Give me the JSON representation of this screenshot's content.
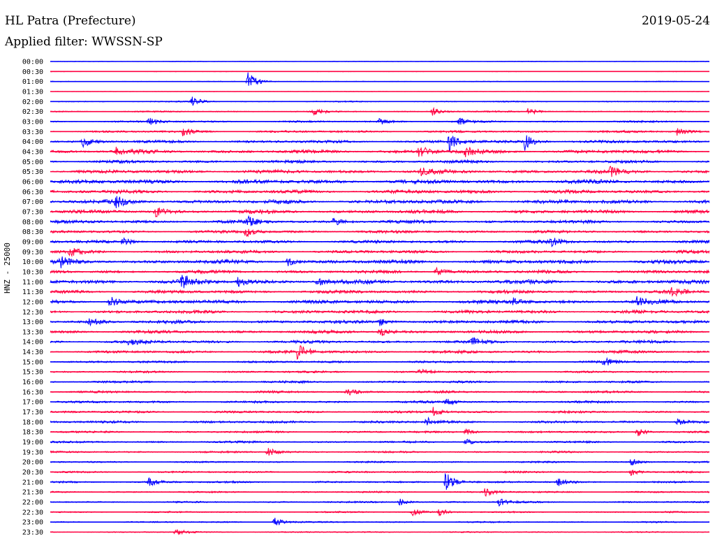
{
  "header": {
    "station": "HL Patra (Prefecture)",
    "date": "2019-05-24",
    "filter": "Applied filter: WWSSN-SP"
  },
  "chart_data": {
    "type": "line",
    "title": "HL Patra (Prefecture)",
    "ylabel": "HNZ - 25000",
    "colors": {
      "even": "#0000ff",
      "odd": "#ff0040"
    },
    "rows": [
      {
        "label": "00:00",
        "level": 0.15,
        "events": []
      },
      {
        "label": "00:30",
        "level": 0.15,
        "events": []
      },
      {
        "label": "01:00",
        "level": 0.2,
        "events": [
          [
            0.3,
            2.4
          ]
        ]
      },
      {
        "label": "01:30",
        "level": 0.12,
        "events": []
      },
      {
        "label": "02:00",
        "level": 0.3,
        "events": [
          [
            0.215,
            1.1
          ]
        ]
      },
      {
        "label": "02:30",
        "level": 0.35,
        "events": [
          [
            0.4,
            0.8
          ],
          [
            0.58,
            0.9
          ],
          [
            0.725,
            1.0
          ]
        ]
      },
      {
        "label": "03:00",
        "level": 0.45,
        "events": [
          [
            0.15,
            0.9
          ],
          [
            0.5,
            0.7
          ],
          [
            0.62,
            0.7
          ]
        ]
      },
      {
        "label": "03:30",
        "level": 0.55,
        "events": [
          [
            0.2,
            1.0
          ],
          [
            0.95,
            1.0
          ]
        ]
      },
      {
        "label": "04:00",
        "level": 0.7,
        "events": [
          [
            0.05,
            1.2
          ],
          [
            0.605,
            2.4
          ],
          [
            0.72,
            2.2
          ]
        ]
      },
      {
        "label": "04:30",
        "level": 0.9,
        "events": [
          [
            0.1,
            1.0
          ],
          [
            0.56,
            1.4
          ],
          [
            0.63,
            1.2
          ]
        ]
      },
      {
        "label": "05:00",
        "level": 0.7,
        "events": []
      },
      {
        "label": "05:30",
        "level": 0.9,
        "events": [
          [
            0.56,
            1.0
          ],
          [
            0.85,
            1.0
          ]
        ]
      },
      {
        "label": "06:00",
        "level": 1.0,
        "events": []
      },
      {
        "label": "06:30",
        "level": 0.9,
        "events": []
      },
      {
        "label": "07:00",
        "level": 1.0,
        "events": [
          [
            0.1,
            1.1
          ]
        ]
      },
      {
        "label": "07:30",
        "level": 0.9,
        "events": [
          [
            0.16,
            1.2
          ]
        ]
      },
      {
        "label": "08:00",
        "level": 0.8,
        "events": [
          [
            0.3,
            1.0
          ],
          [
            0.43,
            0.9
          ]
        ]
      },
      {
        "label": "08:30",
        "level": 0.7,
        "events": [
          [
            0.295,
            1.2
          ]
        ]
      },
      {
        "label": "09:00",
        "level": 0.75,
        "events": [
          [
            0.11,
            1.1
          ],
          [
            0.76,
            1.0
          ]
        ]
      },
      {
        "label": "09:30",
        "level": 0.75,
        "events": [
          [
            0.03,
            1.1
          ]
        ]
      },
      {
        "label": "10:00",
        "level": 0.95,
        "events": [
          [
            0.015,
            1.3
          ],
          [
            0.36,
            1.0
          ]
        ]
      },
      {
        "label": "10:30",
        "level": 0.8,
        "events": [
          [
            0.585,
            1.0
          ]
        ]
      },
      {
        "label": "11:00",
        "level": 1.0,
        "events": [
          [
            0.2,
            1.9
          ],
          [
            0.285,
            1.1
          ],
          [
            0.405,
            1.1
          ]
        ]
      },
      {
        "label": "11:30",
        "level": 0.8,
        "events": [
          [
            0.94,
            1.1
          ]
        ]
      },
      {
        "label": "12:00",
        "level": 0.9,
        "events": [
          [
            0.09,
            1.3
          ],
          [
            0.7,
            1.0
          ],
          [
            0.89,
            1.2
          ]
        ]
      },
      {
        "label": "12:30",
        "level": 0.8,
        "events": []
      },
      {
        "label": "13:00",
        "level": 0.8,
        "events": [
          [
            0.06,
            1.0
          ],
          [
            0.5,
            1.0
          ]
        ]
      },
      {
        "label": "13:30",
        "level": 0.75,
        "events": [
          [
            0.5,
            1.3
          ]
        ]
      },
      {
        "label": "14:00",
        "level": 0.7,
        "events": [
          [
            0.12,
            0.9
          ],
          [
            0.64,
            0.9
          ]
        ]
      },
      {
        "label": "14:30",
        "level": 0.7,
        "events": [
          [
            0.375,
            2.2
          ]
        ]
      },
      {
        "label": "15:00",
        "level": 0.55,
        "events": [
          [
            0.84,
            1.0
          ]
        ]
      },
      {
        "label": "15:30",
        "level": 0.5,
        "events": [
          [
            0.56,
            0.9
          ]
        ]
      },
      {
        "label": "16:00",
        "level": 0.55,
        "events": []
      },
      {
        "label": "16:30",
        "level": 0.55,
        "events": [
          [
            0.45,
            0.9
          ]
        ]
      },
      {
        "label": "17:00",
        "level": 0.55,
        "events": [
          [
            0.6,
            0.9
          ]
        ]
      },
      {
        "label": "17:30",
        "level": 0.55,
        "events": [
          [
            0.58,
            1.2
          ]
        ]
      },
      {
        "label": "18:00",
        "level": 0.6,
        "events": [
          [
            0.57,
            1.1
          ],
          [
            0.95,
            1.0
          ]
        ]
      },
      {
        "label": "18:30",
        "level": 0.5,
        "events": [
          [
            0.63,
            0.9
          ],
          [
            0.89,
            1.1
          ]
        ]
      },
      {
        "label": "19:00",
        "level": 0.5,
        "events": [
          [
            0.63,
            0.9
          ]
        ]
      },
      {
        "label": "19:30",
        "level": 0.45,
        "events": [
          [
            0.33,
            1.0
          ]
        ]
      },
      {
        "label": "20:00",
        "level": 0.4,
        "events": [
          [
            0.88,
            0.9
          ]
        ]
      },
      {
        "label": "20:30",
        "level": 0.45,
        "events": [
          [
            0.88,
            1.0
          ]
        ]
      },
      {
        "label": "21:00",
        "level": 0.45,
        "events": [
          [
            0.6,
            2.4
          ],
          [
            0.77,
            0.9
          ],
          [
            0.15,
            0.9
          ]
        ]
      },
      {
        "label": "21:30",
        "level": 0.4,
        "events": [
          [
            0.66,
            1.0
          ]
        ]
      },
      {
        "label": "22:00",
        "level": 0.4,
        "events": [
          [
            0.68,
            1.0
          ],
          [
            0.53,
            0.8
          ]
        ]
      },
      {
        "label": "22:30",
        "level": 0.35,
        "events": [
          [
            0.55,
            0.9
          ],
          [
            0.59,
            0.9
          ]
        ]
      },
      {
        "label": "23:00",
        "level": 0.35,
        "events": [
          [
            0.34,
            1.2
          ]
        ]
      },
      {
        "label": "23:30",
        "level": 0.3,
        "events": [
          [
            0.19,
            0.9
          ]
        ]
      }
    ]
  }
}
